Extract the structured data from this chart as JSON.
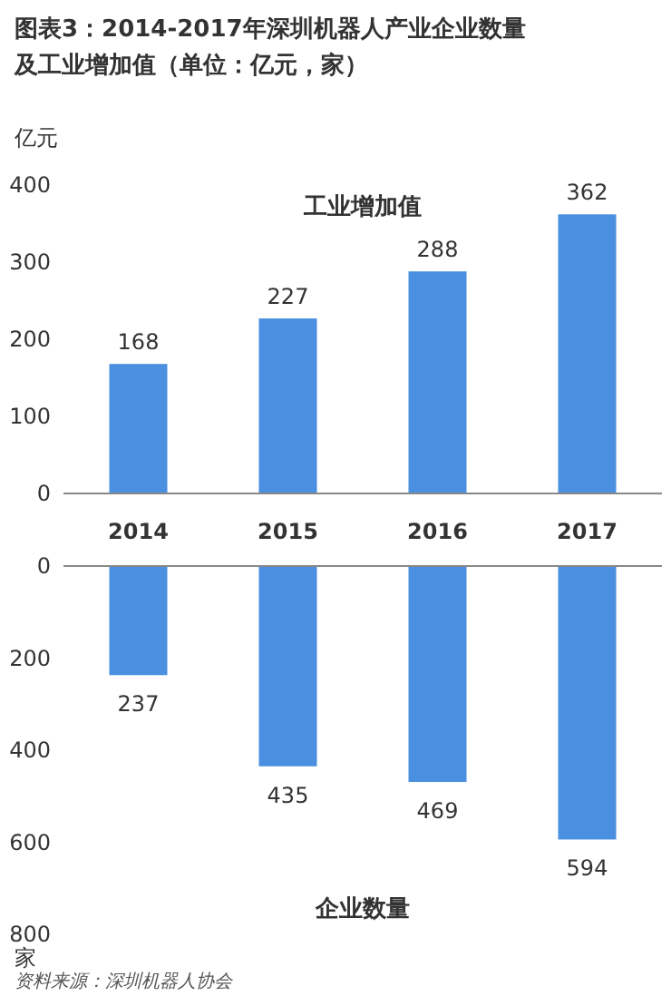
{
  "chart_data": [
    {
      "type": "bar",
      "title": "图表3：2014-2017年深圳机器人产业企业数量及工业增加值（单位：亿元，家）",
      "subtitle": "工业增加值",
      "ylabel": "亿元",
      "categories": [
        "2014",
        "2015",
        "2016",
        "2017"
      ],
      "values": [
        168,
        227,
        288,
        362
      ],
      "color": "#4a8fe0",
      "ylim": [
        0,
        400
      ],
      "yticks": [
        0,
        100,
        200,
        300,
        400
      ],
      "data_labels": true
    },
    {
      "type": "bar",
      "title": "企业数量",
      "ylabel": "家",
      "categories": [
        null,
        null,
        null,
        null
      ],
      "values": [
        237,
        435,
        469,
        594
      ],
      "color": "#4a8fe0",
      "ylim": [
        800,
        0
      ],
      "yticks": [
        0,
        200,
        400,
        600,
        800
      ],
      "data_labels": true,
      "tick_labels": "y",
      "annotations": [
        "资料来源：深圳机器人协会"
      ]
    }
  ]
}
